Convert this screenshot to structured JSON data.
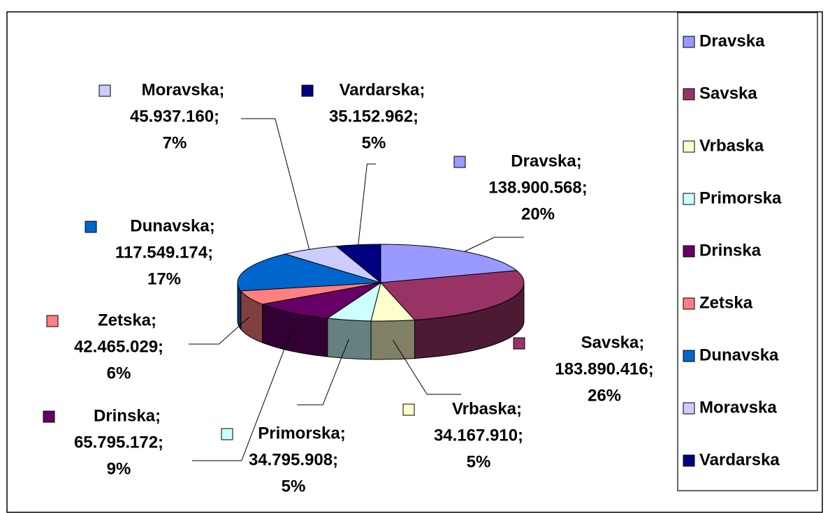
{
  "chart_data": {
    "type": "pie3d",
    "categories": [
      "Dravska",
      "Savska",
      "Vrbaska",
      "Primorska",
      "Drinska",
      "Zetska",
      "Dunavska",
      "Moravska",
      "Vardarska"
    ],
    "data_label_names": [
      "Dravska;",
      "Savska;",
      "Vrbaska;",
      "Primorska;",
      "Drinska;",
      "Zetska;",
      "Dunavska;",
      "Moravska;",
      "Vardarska;"
    ],
    "values": [
      138900568,
      183890416,
      34167910,
      34795908,
      65795172,
      42465029,
      117549174,
      45937160,
      35152962
    ],
    "value_labels": [
      "138.900.568;",
      "183.890.416;",
      "34.167.910;",
      "34.795.908;",
      "65.795.172;",
      "42.465.029;",
      "117.549.174;",
      "45.937.160;",
      "35.152.962;"
    ],
    "percent_labels": [
      "20%",
      "26%",
      "5%",
      "5%",
      "9%",
      "6%",
      "17%",
      "7%",
      "5%"
    ],
    "colors": [
      "#9999ff",
      "#993366",
      "#ffffcc",
      "#ccffff",
      "#660066",
      "#ff8080",
      "#0066cc",
      "#ccccff",
      "#000080"
    ],
    "legend": "right"
  }
}
